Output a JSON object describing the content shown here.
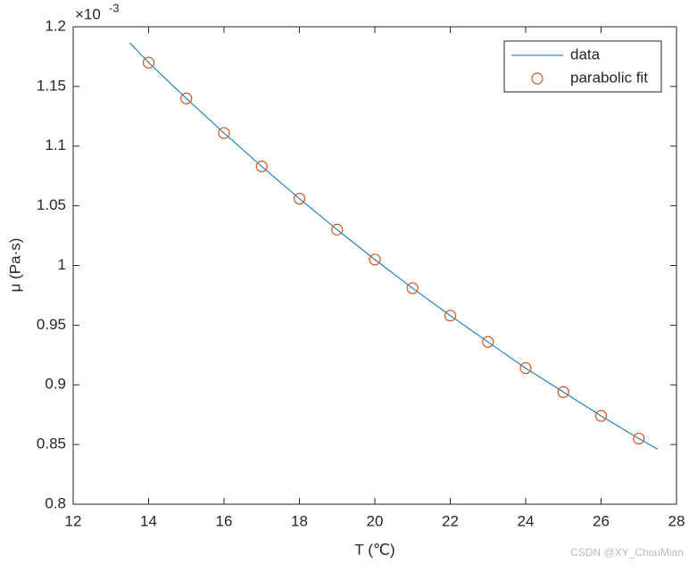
{
  "chart_data": {
    "type": "line",
    "xlabel": "T (℃)",
    "ylabel": "μ (Pa·s)",
    "y_exponent": {
      "base": "×10",
      "power": "-3"
    },
    "xlim": [
      12,
      28
    ],
    "xticks": [
      12,
      14,
      16,
      18,
      20,
      22,
      24,
      26,
      28
    ],
    "ylim": [
      0.8,
      1.2
    ],
    "yticks": [
      0.8,
      0.85,
      0.9,
      0.95,
      1,
      1.05,
      1.1,
      1.15,
      1.2
    ],
    "legend": "top-right",
    "series": [
      {
        "name": "data",
        "color": "#0072BD",
        "style": "line",
        "x": [
          13.5,
          14,
          15,
          16,
          17,
          18,
          19,
          20,
          21,
          22,
          23,
          24,
          25,
          26,
          27,
          27.5
        ],
        "values": [
          1.1865,
          1.17,
          1.14,
          1.111,
          1.083,
          1.056,
          1.03,
          1.005,
          0.981,
          0.958,
          0.936,
          0.914,
          0.894,
          0.874,
          0.855,
          0.846
        ]
      },
      {
        "name": "parabolic fit",
        "color": "#D95319",
        "style": "marker",
        "x": [
          14,
          15,
          16,
          17,
          18,
          19,
          20,
          21,
          22,
          23,
          24,
          25,
          26,
          27
        ],
        "values": [
          1.17,
          1.14,
          1.111,
          1.083,
          1.056,
          1.03,
          1.005,
          0.981,
          0.958,
          0.936,
          0.914,
          0.894,
          0.874,
          0.855
        ]
      }
    ],
    "watermark": "CSDN @XY_ChouMian"
  }
}
